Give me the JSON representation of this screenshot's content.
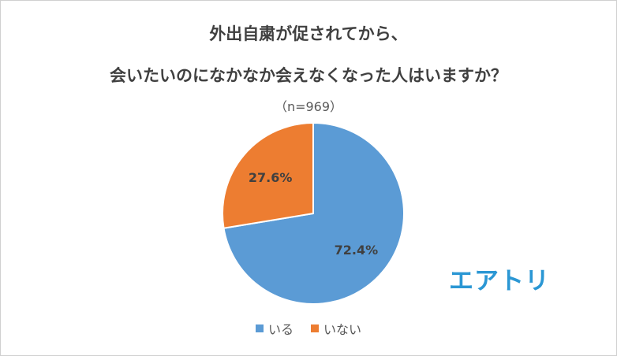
{
  "chart_data": {
    "type": "pie",
    "title": "外出自粛が促されてから、",
    "subtitle": "会いたいのになかなか会えなくなった人はいますか？",
    "note": "（n=969）",
    "slices": [
      {
        "label": "いる",
        "value": 72.4,
        "display": "72.4%",
        "color": "#5b9bd5"
      },
      {
        "label": "いない",
        "value": 27.6,
        "display": "27.6%",
        "color": "#ed7d31"
      }
    ],
    "legend_position": "bottom"
  },
  "brand": {
    "logo_text": "エアトリ",
    "color": "#2b97d4"
  }
}
